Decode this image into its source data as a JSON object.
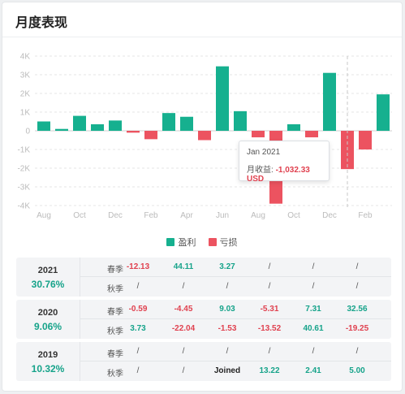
{
  "title": "月度表现",
  "colors": {
    "profit": "#16b08f",
    "loss": "#ec5360",
    "axis": "#bbbbbb",
    "grid": "#e6e6e6"
  },
  "chart_data": {
    "type": "bar",
    "ylim": [
      -4000,
      4000
    ],
    "yticks": [
      4000,
      3000,
      2000,
      1000,
      0,
      -1000,
      -2000,
      -3000,
      -4000
    ],
    "ytick_labels": [
      "4K",
      "3K",
      "2K",
      "1K",
      "0",
      "-1K",
      "-2K",
      "-3K",
      "-4K"
    ],
    "xtick_labels": [
      "Aug",
      "Oct",
      "Dec",
      "Feb",
      "Apr",
      "Jun",
      "Aug",
      "Oct",
      "Dec",
      "Feb"
    ],
    "values": [
      500,
      100,
      800,
      350,
      550,
      -100,
      -450,
      950,
      750,
      -500,
      3450,
      1050,
      -350,
      -3900,
      350,
      -350,
      3100,
      -2050,
      -1000,
      1950
    ],
    "highlight_index": 17,
    "legend": [
      "盈利",
      "亏损"
    ]
  },
  "tooltip": {
    "date": "Jan 2021",
    "label": "月收益: ",
    "value": "-1,032.33 USD"
  },
  "table": [
    {
      "year": "2021",
      "pct": "30.76%",
      "rows": [
        {
          "season": "春季",
          "cells": [
            "-12.13",
            "44.11",
            "3.27",
            "/",
            "/",
            "/"
          ]
        },
        {
          "season": "秋季",
          "cells": [
            "/",
            "/",
            "/",
            "/",
            "/",
            "/"
          ]
        }
      ]
    },
    {
      "year": "2020",
      "pct": "9.06%",
      "rows": [
        {
          "season": "春季",
          "cells": [
            "-0.59",
            "-4.45",
            "9.03",
            "-5.31",
            "7.31",
            "32.56"
          ]
        },
        {
          "season": "秋季",
          "cells": [
            "3.73",
            "-22.04",
            "-1.53",
            "-13.52",
            "40.61",
            "-19.25"
          ]
        }
      ]
    },
    {
      "year": "2019",
      "pct": "10.32%",
      "rows": [
        {
          "season": "春季",
          "cells": [
            "/",
            "/",
            "/",
            "/",
            "/",
            "/"
          ]
        },
        {
          "season": "秋季",
          "cells": [
            "/",
            "/",
            "Joined",
            "13.22",
            "2.41",
            "5.00"
          ]
        }
      ]
    }
  ]
}
